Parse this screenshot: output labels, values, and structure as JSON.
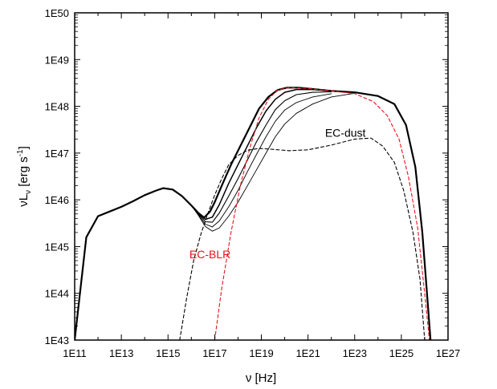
{
  "chart_data": {
    "type": "line",
    "xlabel": "ν [Hz]",
    "ylabel": "νL",
    "ylabel_sub": "ν",
    "ylabel_units": " [erg s",
    "ylabel_exp": "-1",
    "ylabel_close": "]",
    "x_log_range": [
      11,
      27
    ],
    "y_log_range": [
      43,
      50
    ],
    "x_scale": "log",
    "y_scale": "log",
    "grid": false,
    "xticks": [
      "1E11",
      "1E13",
      "1E15",
      "1E17",
      "1E19",
      "1E21",
      "1E23",
      "1E25",
      "1E27"
    ],
    "yticks": [
      "1E43",
      "1E44",
      "1E45",
      "1E46",
      "1E47",
      "1E48",
      "1E49",
      "1E50"
    ],
    "annotations": [
      {
        "text": "EC-dust",
        "color": "#000000",
        "x_log": 22.6,
        "y_log": 47.35
      },
      {
        "text": "EC-BLR",
        "color": "#e8141c",
        "x_log": 16.8,
        "y_log": 44.75
      }
    ],
    "series": [
      {
        "color": "#000000",
        "style": "solid",
        "width": 2.2,
        "points": [
          [
            11.0,
            43.0
          ],
          [
            11.5,
            45.2
          ],
          [
            12.0,
            45.65
          ],
          [
            12.5,
            45.75
          ],
          [
            13.0,
            45.85
          ],
          [
            13.5,
            45.97
          ],
          [
            14.0,
            46.1
          ],
          [
            14.5,
            46.2
          ],
          [
            14.8,
            46.25
          ],
          [
            15.2,
            46.22
          ],
          [
            15.6,
            46.08
          ],
          [
            16.0,
            45.88
          ],
          [
            16.3,
            45.72
          ],
          [
            16.55,
            45.62
          ],
          [
            16.8,
            45.75
          ],
          [
            17.0,
            45.95
          ],
          [
            17.3,
            46.3
          ],
          [
            17.7,
            46.75
          ],
          [
            18.1,
            47.15
          ],
          [
            18.5,
            47.55
          ],
          [
            18.9,
            47.95
          ],
          [
            19.3,
            48.2
          ],
          [
            19.7,
            48.35
          ],
          [
            20.1,
            48.4
          ],
          [
            20.6,
            48.4
          ],
          [
            21.2,
            48.37
          ],
          [
            22.0,
            48.33
          ],
          [
            23.0,
            48.3
          ],
          [
            24.0,
            48.22
          ],
          [
            24.7,
            48.05
          ],
          [
            25.2,
            47.6
          ],
          [
            25.6,
            46.7
          ],
          [
            25.9,
            45.3
          ],
          [
            26.1,
            44.0
          ],
          [
            26.25,
            43.0
          ]
        ]
      },
      {
        "color": "#000000",
        "style": "solid",
        "width": 1.5,
        "points": [
          [
            16.0,
            45.88
          ],
          [
            16.3,
            45.71
          ],
          [
            16.6,
            45.58
          ],
          [
            16.9,
            45.63
          ],
          [
            17.2,
            45.9
          ],
          [
            17.6,
            46.35
          ],
          [
            18.0,
            46.75
          ],
          [
            18.4,
            47.15
          ],
          [
            18.8,
            47.55
          ],
          [
            19.2,
            47.9
          ],
          [
            19.6,
            48.15
          ],
          [
            20.0,
            48.3
          ],
          [
            20.5,
            48.36
          ],
          [
            21.2,
            48.36
          ],
          [
            22.0,
            48.33
          ]
        ]
      },
      {
        "color": "#000000",
        "style": "solid",
        "width": 1.1,
        "points": [
          [
            16.0,
            45.88
          ],
          [
            16.3,
            45.7
          ],
          [
            16.6,
            45.53
          ],
          [
            16.9,
            45.52
          ],
          [
            17.2,
            45.72
          ],
          [
            17.6,
            46.08
          ],
          [
            18.0,
            46.45
          ],
          [
            18.4,
            46.85
          ],
          [
            18.8,
            47.25
          ],
          [
            19.2,
            47.6
          ],
          [
            19.6,
            47.93
          ],
          [
            20.0,
            48.12
          ],
          [
            20.5,
            48.25
          ],
          [
            21.2,
            48.3
          ],
          [
            22.0,
            48.31
          ]
        ]
      },
      {
        "color": "#000000",
        "style": "solid",
        "width": 0.9,
        "points": [
          [
            16.0,
            45.88
          ],
          [
            16.3,
            45.68
          ],
          [
            16.6,
            45.48
          ],
          [
            16.9,
            45.42
          ],
          [
            17.2,
            45.55
          ],
          [
            17.6,
            45.85
          ],
          [
            18.0,
            46.2
          ],
          [
            18.4,
            46.6
          ],
          [
            18.8,
            46.98
          ],
          [
            19.2,
            47.35
          ],
          [
            19.6,
            47.68
          ],
          [
            20.0,
            47.92
          ],
          [
            20.5,
            48.08
          ],
          [
            21.2,
            48.2
          ],
          [
            22.0,
            48.27
          ]
        ]
      },
      {
        "color": "#000000",
        "style": "solid",
        "width": 0.9,
        "points": [
          [
            16.0,
            45.88
          ],
          [
            16.3,
            45.67
          ],
          [
            16.6,
            45.43
          ],
          [
            16.9,
            45.33
          ],
          [
            17.2,
            45.4
          ],
          [
            17.6,
            45.65
          ],
          [
            18.0,
            45.95
          ],
          [
            18.4,
            46.3
          ],
          [
            18.8,
            46.65
          ],
          [
            19.2,
            47.0
          ],
          [
            19.6,
            47.35
          ],
          [
            20.0,
            47.62
          ],
          [
            20.5,
            47.85
          ],
          [
            21.2,
            48.05
          ],
          [
            22.0,
            48.2
          ],
          [
            23.0,
            48.28
          ]
        ]
      },
      {
        "color": "#e8141c",
        "style": "dashed",
        "width": 1.1,
        "points": [
          [
            17.0,
            43.0
          ],
          [
            17.3,
            44.1
          ],
          [
            17.7,
            45.3
          ],
          [
            18.1,
            46.3
          ],
          [
            18.5,
            47.1
          ],
          [
            18.9,
            47.75
          ],
          [
            19.3,
            48.15
          ],
          [
            19.7,
            48.35
          ],
          [
            20.2,
            48.4
          ],
          [
            21.0,
            48.38
          ],
          [
            22.0,
            48.33
          ],
          [
            23.0,
            48.27
          ],
          [
            23.8,
            48.1
          ],
          [
            24.4,
            47.8
          ],
          [
            24.9,
            47.3
          ],
          [
            25.3,
            46.5
          ],
          [
            25.7,
            45.4
          ],
          [
            26.0,
            44.0
          ],
          [
            26.2,
            43.0
          ]
        ]
      },
      {
        "color": "#000000",
        "style": "dashed",
        "width": 1.1,
        "points": [
          [
            15.5,
            43.0
          ],
          [
            15.8,
            43.9
          ],
          [
            16.1,
            44.7
          ],
          [
            16.4,
            45.25
          ],
          [
            16.7,
            45.7
          ],
          [
            17.0,
            46.1
          ],
          [
            17.3,
            46.45
          ],
          [
            17.6,
            46.75
          ],
          [
            18.0,
            46.95
          ],
          [
            18.4,
            47.06
          ],
          [
            18.9,
            47.1
          ],
          [
            19.5,
            47.08
          ],
          [
            20.2,
            47.05
          ],
          [
            21.0,
            47.07
          ],
          [
            22.0,
            47.17
          ],
          [
            23.0,
            47.3
          ],
          [
            23.7,
            47.32
          ],
          [
            24.2,
            47.15
          ],
          [
            24.7,
            46.8
          ],
          [
            25.1,
            46.2
          ],
          [
            25.5,
            45.3
          ],
          [
            25.8,
            44.3
          ],
          [
            26.0,
            43.0
          ]
        ]
      }
    ]
  }
}
